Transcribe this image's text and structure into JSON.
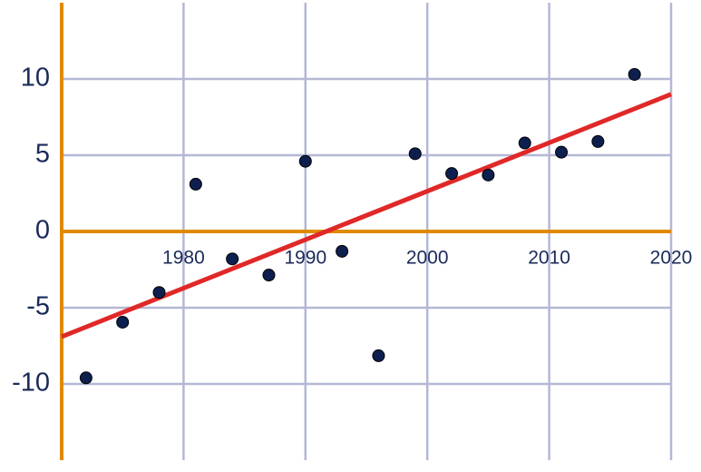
{
  "chart_data": {
    "type": "scatter",
    "x": [
      1972,
      1975,
      1978,
      1981,
      1984,
      1987,
      1990,
      1993,
      1996,
      1999,
      2002,
      2005,
      2008,
      2011,
      2014,
      2017
    ],
    "series": [
      {
        "color": "#0d1f4f",
        "values": [
          -9.6,
          -5.95,
          -4.0,
          3.1,
          -1.8,
          -2.86,
          4.6,
          -1.3,
          -8.15,
          5.1,
          3.8,
          3.7,
          5.8,
          5.2,
          5.9,
          10.3
        ]
      }
    ],
    "trend_line": {
      "x": [
        1970,
        2020
      ],
      "values": [
        -6.9,
        9.0
      ],
      "color": "#e02828"
    },
    "xlim": [
      1970,
      2020
    ],
    "ylim": [
      -15,
      15
    ],
    "xticks": [
      1980,
      1990,
      2000,
      2010,
      2020
    ],
    "yticks": [
      -10,
      -5,
      0,
      5,
      10
    ],
    "grid": true,
    "axis_color": "#e08a00",
    "grid_color": "#b4b8d4"
  }
}
